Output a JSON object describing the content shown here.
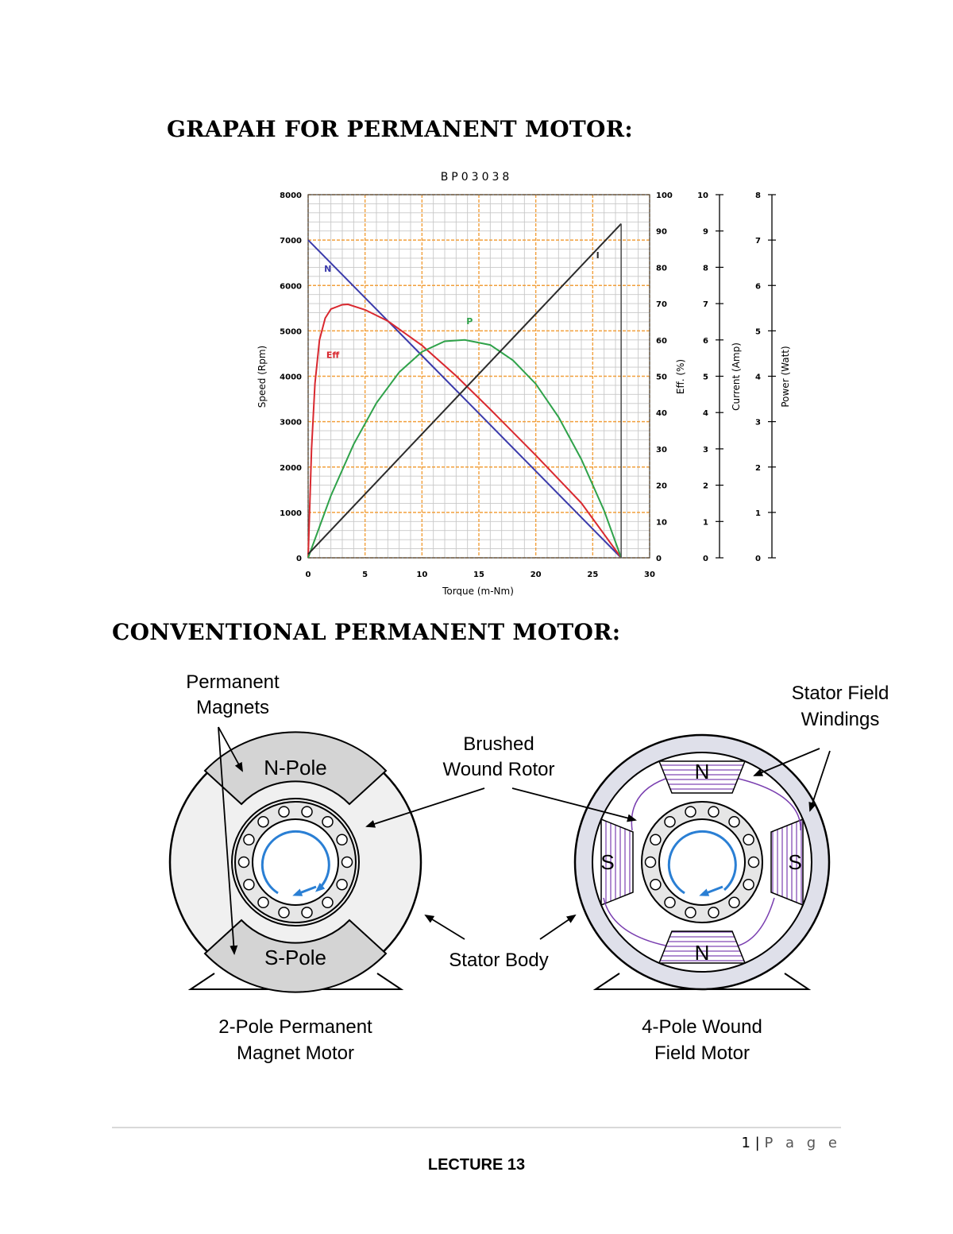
{
  "heading_graph": "GRAPAH FOR PERMANENT MOTOR:",
  "heading_diagram": "CONVENTIONAL PERMANENT MOTOR:",
  "chart_data": {
    "type": "line",
    "title": "BP03038",
    "xlabel": "Torque (m-Nm)",
    "ylabel": "Speed (Rpm)",
    "xlim": [
      0,
      30
    ],
    "ylim": [
      0,
      8000
    ],
    "xticks": [
      "0",
      "5",
      "10",
      "15",
      "20",
      "25",
      "30"
    ],
    "yticks": [
      "0",
      "1000",
      "2000",
      "3000",
      "4000",
      "5000",
      "6000",
      "7000",
      "8000"
    ],
    "grid": true,
    "secondary_axes": [
      {
        "label": "Eff. (%)",
        "range": [
          0,
          100
        ],
        "ticks": [
          "0",
          "10",
          "20",
          "30",
          "40",
          "50",
          "60",
          "70",
          "80",
          "90",
          "100"
        ]
      },
      {
        "label": "Current (Amp)",
        "range": [
          0,
          10
        ],
        "ticks": [
          "0",
          "1",
          "2",
          "3",
          "4",
          "5",
          "6",
          "7",
          "8",
          "9",
          "10"
        ]
      },
      {
        "label": "Power (Watt)",
        "range": [
          0,
          8
        ],
        "ticks": [
          "0",
          "1",
          "2",
          "3",
          "4",
          "5",
          "6",
          "7",
          "8"
        ]
      }
    ],
    "series": [
      {
        "name": "N",
        "color": "#3b3bab",
        "axis": "Speed (Rpm)",
        "x": [
          0,
          5,
          10,
          15,
          20,
          25,
          27.5
        ],
        "y": [
          7000,
          5727,
          4455,
          3182,
          1909,
          636,
          0
        ]
      },
      {
        "name": "Eff",
        "color": "#d9282f",
        "axis": "Eff. (%)",
        "x": [
          0,
          0.3,
          0.6,
          1,
          1.5,
          2,
          3,
          3.5,
          5,
          7,
          10,
          13,
          16,
          20,
          24,
          27.5
        ],
        "y": [
          0,
          30,
          48,
          60,
          66,
          68.5,
          69.7,
          69.8,
          68.3,
          65.2,
          58.5,
          50.1,
          40.9,
          28.2,
          15.1,
          0
        ]
      },
      {
        "name": "P",
        "color": "#2fa24a",
        "axis": "Power (Watt)",
        "x": [
          0,
          2,
          4,
          6,
          8,
          10,
          12,
          13.75,
          16,
          18,
          20,
          22,
          24,
          26,
          27.5
        ],
        "y": [
          0,
          1.37,
          2.5,
          3.41,
          4.09,
          4.54,
          4.77,
          4.8,
          4.69,
          4.35,
          3.83,
          3.1,
          2.17,
          1.04,
          0
        ]
      },
      {
        "name": "I",
        "color": "#2b2b2b",
        "axis": "Current (Amp)",
        "x": [
          0,
          27.5
        ],
        "y": [
          0.1,
          9.2
        ]
      }
    ]
  },
  "diagram": {
    "left": {
      "label_magnets": [
        "Permanent",
        "Magnets"
      ],
      "north_pole": "N-Pole",
      "south_pole": "S-Pole",
      "caption": [
        "2-Pole Permanent",
        "Magnet Motor"
      ]
    },
    "center": {
      "label_rotor": [
        "Brushed",
        "Wound Rotor"
      ],
      "label_stator": "Stator Body"
    },
    "right": {
      "label_windings": [
        "Stator Field",
        "Windings"
      ],
      "poles": [
        "N",
        "S",
        "S",
        "N"
      ],
      "caption": [
        "4-Pole Wound",
        "Field Motor"
      ]
    }
  },
  "footer": {
    "page_number": "1",
    "separator": "|",
    "page_word": "P a g e",
    "lecture": "LECTURE 13"
  },
  "colors": {
    "grid_major": "#f2a03c",
    "grid_minor": "#c8c8c8",
    "rotation_arrow": "#2a7fd4",
    "winding": "#7a3fb0"
  }
}
